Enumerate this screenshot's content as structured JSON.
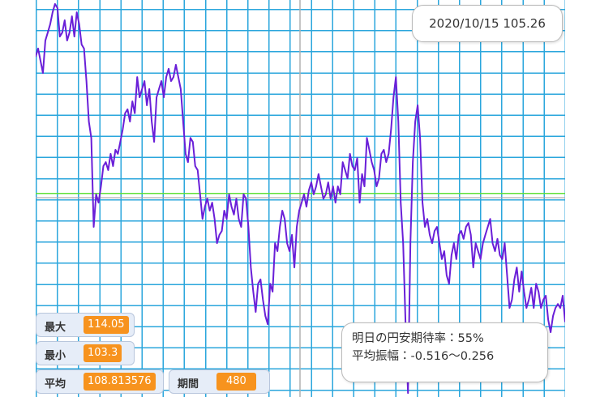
{
  "chart_data": {
    "type": "line",
    "color": "#6a1fd8",
    "average_color": "#5fe03a",
    "ylim": [
      103.19,
      114.16
    ],
    "values": [
      112.59,
      112.82,
      112.48,
      112.14,
      113.04,
      113.26,
      113.49,
      113.82,
      114.05,
      113.94,
      113.15,
      113.26,
      113.6,
      113.04,
      113.26,
      113.71,
      113.15,
      113.82,
      113.49,
      112.93,
      112.82,
      111.92,
      110.8,
      110.35,
      107.89,
      108.79,
      108.56,
      109.01,
      109.57,
      109.68,
      109.46,
      109.91,
      109.57,
      110.02,
      109.91,
      110.24,
      110.58,
      111.03,
      111.14,
      110.8,
      111.36,
      111.03,
      112.03,
      111.47,
      111.7,
      111.92,
      111.25,
      111.7,
      110.8,
      110.24,
      111.47,
      111.7,
      111.92,
      111.47,
      112.03,
      112.26,
      111.92,
      112.03,
      112.37,
      112.03,
      111.7,
      110.8,
      109.91,
      109.68,
      110.35,
      110.24,
      109.57,
      109.46,
      108.79,
      108.11,
      108.45,
      108.67,
      108.34,
      108.56,
      108.11,
      107.44,
      107.67,
      107.78,
      108.34,
      108.11,
      108.79,
      108.45,
      108.23,
      108.67,
      108.11,
      107.89,
      108.79,
      108.67,
      107.89,
      106.77,
      106.1,
      105.54,
      106.32,
      106.44,
      105.88,
      105.43,
      105.2,
      106.32,
      106.1,
      107.44,
      107.22,
      107.89,
      108.34,
      108.11,
      107.44,
      107.22,
      107.67,
      106.77,
      107.89,
      108.34,
      108.56,
      108.79,
      108.45,
      108.9,
      109.12,
      108.79,
      109.01,
      109.35,
      109.01,
      108.67,
      108.79,
      109.12,
      108.67,
      109.01,
      108.56,
      109.01,
      108.79,
      109.68,
      109.46,
      109.23,
      109.91,
      109.57,
      109.46,
      109.79,
      108.56,
      109.35,
      109.01,
      110.35,
      110.02,
      109.68,
      109.46,
      109.01,
      109.23,
      109.91,
      110.02,
      109.68,
      109.91,
      110.58,
      111.47,
      112.03,
      110.8,
      108.56,
      107.44,
      105.2,
      103.3,
      107.44,
      109.68,
      110.8,
      111.25,
      110.35,
      108.56,
      107.89,
      108.11,
      107.67,
      107.44,
      107.78,
      107.89,
      107.44,
      107.0,
      107.22,
      106.55,
      106.32,
      107.11,
      107.44,
      107.0,
      107.67,
      107.78,
      107.56,
      107.89,
      108.0,
      107.67,
      106.77,
      107.44,
      107.22,
      107.0,
      107.44,
      107.67,
      107.89,
      108.11,
      107.44,
      107.22,
      107.56,
      107.11,
      107.0,
      107.44,
      106.55,
      105.65,
      105.88,
      106.44,
      106.77,
      106.1,
      106.66,
      106.1,
      105.65,
      105.88,
      106.21,
      105.65,
      106.32,
      106.1,
      105.65,
      105.88,
      105.99,
      105.32,
      104.98,
      105.43,
      105.65,
      105.76,
      105.65,
      105.99,
      105.26
    ]
  },
  "tooltip": {
    "date": "2020/10/15",
    "value": 105.26
  },
  "forecast": {
    "line1": "明日の円安期待率：55%",
    "line2": "平均振幅：-0.516〜0.256"
  },
  "stats": {
    "max": {
      "label": "最大",
      "value": 114.05
    },
    "min": {
      "label": "最小",
      "value": 103.3
    },
    "average": {
      "label": "平均",
      "value": 108.813576
    },
    "period": {
      "label": "期間",
      "value": 480
    }
  }
}
